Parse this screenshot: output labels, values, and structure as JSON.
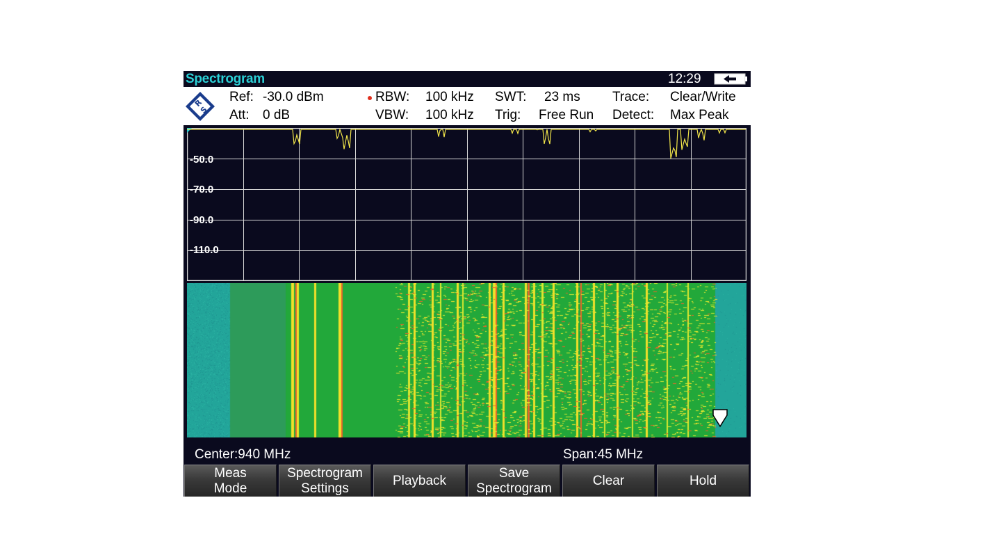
{
  "title_bar": {
    "mode": "Spectrogram",
    "time": "12:29"
  },
  "header": {
    "ref_label": "Ref:",
    "ref_value": "-30.0 dBm",
    "att_label": "Att:",
    "att_value": "0 dB",
    "rbw_label": "RBW:",
    "rbw_value": "100 kHz",
    "vbw_label": "VBW:",
    "vbw_value": "100 kHz",
    "swt_label": "SWT:",
    "swt_value": "23 ms",
    "trig_label": "Trig:",
    "trig_value": "Free Run",
    "trace_label": "Trace:",
    "trace_value": "Clear/Write",
    "detect_label": "Detect:",
    "detect_value": "Max Peak"
  },
  "spectrum": {
    "y_tick_labels": [
      "-50.0",
      "-70.0",
      "-90.0",
      "-110.0"
    ],
    "trace_color": "#f2e64a",
    "grid_color": "#d8d8d8"
  },
  "footer": {
    "center": "Center:940 MHz",
    "span": "Span:45 MHz"
  },
  "softkeys": [
    {
      "line1": "Meas",
      "line2": "Mode"
    },
    {
      "line1": "Spectrogram",
      "line2": "Settings"
    },
    {
      "line1": "Playback",
      "line2": ""
    },
    {
      "line1": "Save",
      "line2": "Spectrogram"
    },
    {
      "line1": "Clear",
      "line2": ""
    },
    {
      "line1": "Hold",
      "line2": ""
    }
  ],
  "icons": {
    "logo": "rohde-schwarz-logo",
    "battery": "battery-icon",
    "marker": "marker-icon"
  }
}
